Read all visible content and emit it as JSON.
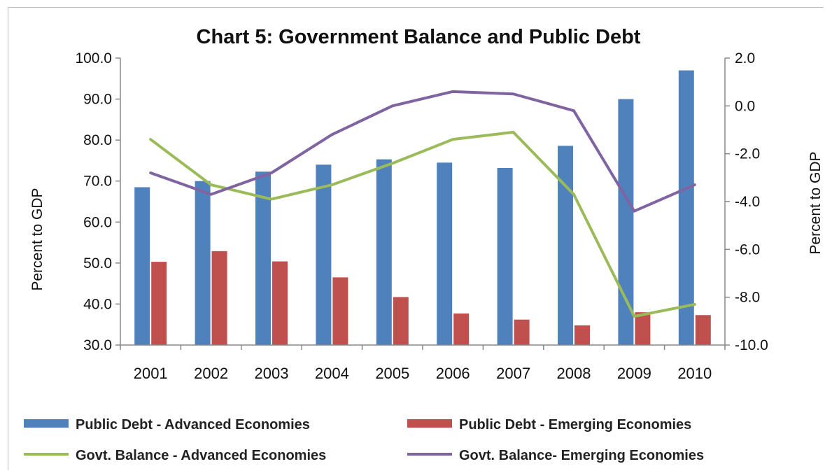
{
  "chart_data": {
    "type": "bar",
    "title": "Chart 5: Government Balance and Public Debt",
    "ylabel_left": "Percent to GDP",
    "ylabel_right": "Percent to GDP",
    "categories": [
      "2001",
      "2002",
      "2003",
      "2004",
      "2005",
      "2006",
      "2007",
      "2008",
      "2009",
      "2010"
    ],
    "ylim_left": [
      30,
      100
    ],
    "ylim_right": [
      -10,
      2
    ],
    "yticks_left": [
      "100.0",
      "90.0",
      "80.0",
      "70.0",
      "60.0",
      "50.0",
      "40.0",
      "30.0"
    ],
    "yticks_right": [
      "2.0",
      "0.0",
      "-2.0",
      "-4.0",
      "-6.0",
      "-8.0",
      "-10.0"
    ],
    "grid": false,
    "legend_position": "bottom",
    "series": [
      {
        "name": "Public Debt - Advanced Economies",
        "type": "bar",
        "axis": "left",
        "color": "#4f81bd",
        "values": [
          68.5,
          70.0,
          72.3,
          74.0,
          75.3,
          74.5,
          73.2,
          78.6,
          90.0,
          97.0
        ]
      },
      {
        "name": "Public Debt - Emerging Economies",
        "type": "bar",
        "axis": "left",
        "color": "#c0504d",
        "values": [
          50.3,
          52.9,
          50.4,
          46.5,
          41.7,
          37.7,
          36.2,
          34.8,
          38.0,
          37.3
        ]
      },
      {
        "name": "Govt. Balance - Advanced Economies",
        "type": "line",
        "axis": "right",
        "color": "#9bbb59",
        "values": [
          -1.4,
          -3.3,
          -3.9,
          -3.3,
          -2.4,
          -1.4,
          -1.1,
          -3.7,
          -8.8,
          -8.3
        ]
      },
      {
        "name": "Govt. Balance- Emerging Economies",
        "type": "line",
        "axis": "right",
        "color": "#8064a2",
        "values": [
          -2.8,
          -3.7,
          -2.8,
          -1.2,
          0.0,
          0.6,
          0.5,
          -0.2,
          -4.4,
          -3.3
        ]
      }
    ]
  }
}
